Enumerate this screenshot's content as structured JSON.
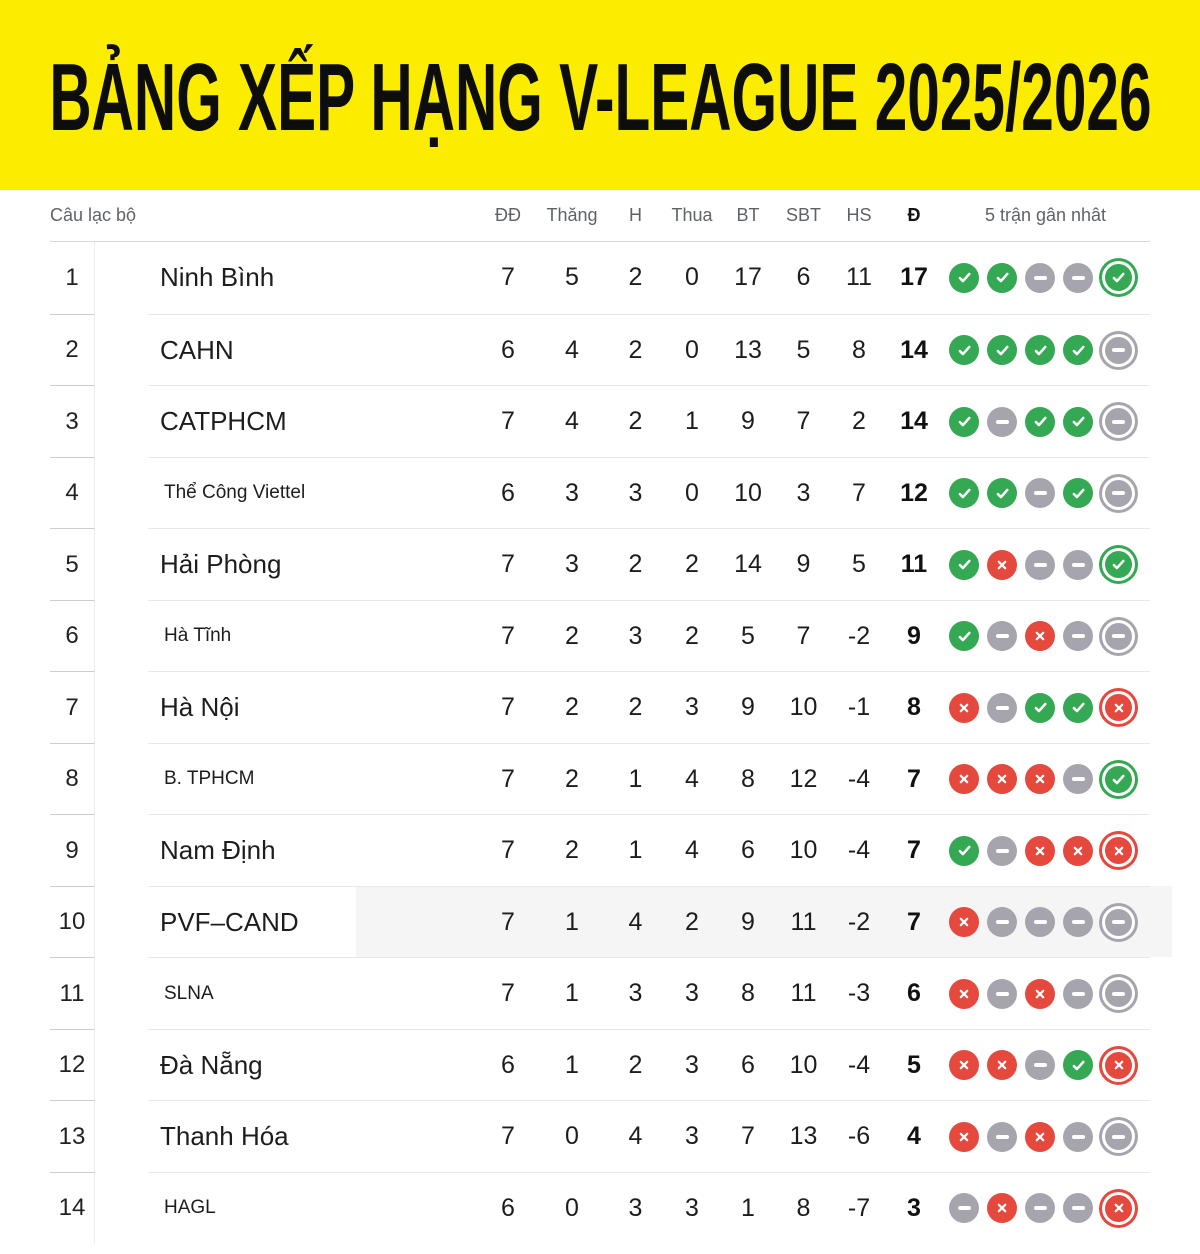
{
  "banner": {
    "title": "BẢNG XẾP HẠNG V-LEAGUE 2025/2026"
  },
  "colors": {
    "banner_bg": "#fbec00",
    "win": "#34a853",
    "draw": "#a6a5ae",
    "loss": "#e5483c"
  },
  "icons": {
    "win": "win-check-icon",
    "draw": "draw-minus-icon",
    "loss": "loss-cross-icon"
  },
  "table": {
    "headers": {
      "club": "Câu lạc bộ",
      "played": "ĐĐ",
      "won": "Thăng",
      "draw": "H",
      "lost": "Thua",
      "gf": "BT",
      "ga": "SBT",
      "gd": "HS",
      "pts": "Đ",
      "form": "5 trận gân nhât"
    },
    "rows": [
      {
        "rank": "1",
        "club": "Ninh Bình",
        "played": "7",
        "won": "5",
        "draw": "2",
        "lost": "0",
        "gf": "17",
        "ga": "6",
        "gd": "11",
        "pts": "17",
        "form": [
          "W",
          "W",
          "D",
          "D",
          "W"
        ]
      },
      {
        "rank": "2",
        "club": "CAHN",
        "played": "6",
        "won": "4",
        "draw": "2",
        "lost": "0",
        "gf": "13",
        "ga": "5",
        "gd": "8",
        "pts": "14",
        "form": [
          "W",
          "W",
          "W",
          "W",
          "D"
        ]
      },
      {
        "rank": "3",
        "club": "CATPHCM",
        "played": "7",
        "won": "4",
        "draw": "2",
        "lost": "1",
        "gf": "9",
        "ga": "7",
        "gd": "2",
        "pts": "14",
        "form": [
          "W",
          "D",
          "W",
          "W",
          "D"
        ]
      },
      {
        "rank": "4",
        "club": "Thể Công Viettel",
        "played": "6",
        "won": "3",
        "draw": "3",
        "lost": "0",
        "gf": "10",
        "ga": "3",
        "gd": "7",
        "pts": "12",
        "form": [
          "W",
          "W",
          "D",
          "W",
          "D"
        ],
        "small_text": true
      },
      {
        "rank": "5",
        "club": "Hải Phòng",
        "played": "7",
        "won": "3",
        "draw": "2",
        "lost": "2",
        "gf": "14",
        "ga": "9",
        "gd": "5",
        "pts": "11",
        "form": [
          "W",
          "L",
          "D",
          "D",
          "W"
        ]
      },
      {
        "rank": "6",
        "club": "Hà Tĩnh",
        "played": "7",
        "won": "2",
        "draw": "3",
        "lost": "2",
        "gf": "5",
        "ga": "7",
        "gd": "-2",
        "pts": "9",
        "form": [
          "W",
          "D",
          "L",
          "D",
          "D"
        ],
        "small_text": true
      },
      {
        "rank": "7",
        "club": "Hà Nội",
        "played": "7",
        "won": "2",
        "draw": "2",
        "lost": "3",
        "gf": "9",
        "ga": "10",
        "gd": "-1",
        "pts": "8",
        "form": [
          "L",
          "D",
          "W",
          "W",
          "L"
        ]
      },
      {
        "rank": "8",
        "club": "B. TPHCM",
        "played": "7",
        "won": "2",
        "draw": "1",
        "lost": "4",
        "gf": "8",
        "ga": "12",
        "gd": "-4",
        "pts": "7",
        "form": [
          "L",
          "L",
          "L",
          "D",
          "W"
        ],
        "small_text": true
      },
      {
        "rank": "9",
        "club": "Nam Định",
        "played": "7",
        "won": "2",
        "draw": "1",
        "lost": "4",
        "gf": "6",
        "ga": "10",
        "gd": "-4",
        "pts": "7",
        "form": [
          "W",
          "D",
          "L",
          "L",
          "L"
        ]
      },
      {
        "rank": "10",
        "club": "PVF–CAND",
        "played": "7",
        "won": "1",
        "draw": "4",
        "lost": "2",
        "gf": "9",
        "ga": "11",
        "gd": "-2",
        "pts": "7",
        "form": [
          "L",
          "D",
          "D",
          "D",
          "D"
        ],
        "highlight": true
      },
      {
        "rank": "11",
        "club": "SLNA",
        "played": "7",
        "won": "1",
        "draw": "3",
        "lost": "3",
        "gf": "8",
        "ga": "11",
        "gd": "-3",
        "pts": "6",
        "form": [
          "L",
          "D",
          "L",
          "D",
          "D"
        ],
        "small_text": true
      },
      {
        "rank": "12",
        "club": "Đà Nẵng",
        "played": "6",
        "won": "1",
        "draw": "2",
        "lost": "3",
        "gf": "6",
        "ga": "10",
        "gd": "-4",
        "pts": "5",
        "form": [
          "L",
          "L",
          "D",
          "W",
          "L"
        ]
      },
      {
        "rank": "13",
        "club": "Thanh Hóa",
        "played": "7",
        "won": "0",
        "draw": "4",
        "lost": "3",
        "gf": "7",
        "ga": "13",
        "gd": "-6",
        "pts": "4",
        "form": [
          "L",
          "D",
          "L",
          "D",
          "D"
        ]
      },
      {
        "rank": "14",
        "club": "HAGL",
        "played": "6",
        "won": "0",
        "draw": "3",
        "lost": "3",
        "gf": "1",
        "ga": "8",
        "gd": "-7",
        "pts": "3",
        "form": [
          "D",
          "L",
          "D",
          "D",
          "L"
        ],
        "small_text": true
      }
    ]
  }
}
